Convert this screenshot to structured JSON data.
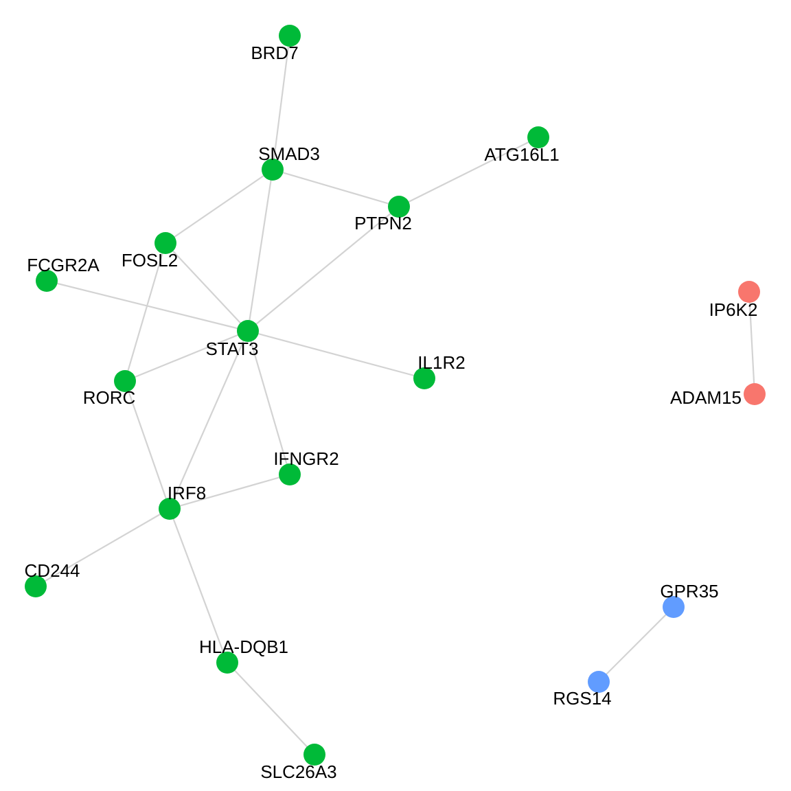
{
  "graph": {
    "colors": {
      "edge": "#d3d3d3",
      "group_green": "#00ba38",
      "group_red": "#f8766d",
      "group_blue": "#619cff"
    },
    "nodes": [
      {
        "id": "BRD7",
        "label": "BRD7",
        "group": "green"
      },
      {
        "id": "SMAD3",
        "label": "SMAD3",
        "group": "green"
      },
      {
        "id": "ATG16L1",
        "label": "ATG16L1",
        "group": "green"
      },
      {
        "id": "PTPN2",
        "label": "PTPN2",
        "group": "green"
      },
      {
        "id": "FOSL2",
        "label": "FOSL2",
        "group": "green"
      },
      {
        "id": "FCGR2A",
        "label": "FCGR2A",
        "group": "green"
      },
      {
        "id": "STAT3",
        "label": "STAT3",
        "group": "green"
      },
      {
        "id": "IL1R2",
        "label": "IL1R2",
        "group": "green"
      },
      {
        "id": "RORC",
        "label": "RORC",
        "group": "green"
      },
      {
        "id": "IFNGR2",
        "label": "IFNGR2",
        "group": "green"
      },
      {
        "id": "IRF8",
        "label": "IRF8",
        "group": "green"
      },
      {
        "id": "CD244",
        "label": "CD244",
        "group": "green"
      },
      {
        "id": "HLA-DQB1",
        "label": "HLA-DQB1",
        "group": "green"
      },
      {
        "id": "SLC26A3",
        "label": "SLC26A3",
        "group": "green"
      },
      {
        "id": "IP6K2",
        "label": "IP6K2",
        "group": "red"
      },
      {
        "id": "ADAM15",
        "label": "ADAM15",
        "group": "red"
      },
      {
        "id": "GPR35",
        "label": "GPR35",
        "group": "blue"
      },
      {
        "id": "RGS14",
        "label": "RGS14",
        "group": "blue"
      }
    ],
    "edges": [
      [
        "BRD7",
        "SMAD3"
      ],
      [
        "SMAD3",
        "PTPN2"
      ],
      [
        "SMAD3",
        "FOSL2"
      ],
      [
        "SMAD3",
        "STAT3"
      ],
      [
        "PTPN2",
        "ATG16L1"
      ],
      [
        "PTPN2",
        "STAT3"
      ],
      [
        "FOSL2",
        "STAT3"
      ],
      [
        "FOSL2",
        "RORC"
      ],
      [
        "FCGR2A",
        "STAT3"
      ],
      [
        "STAT3",
        "IL1R2"
      ],
      [
        "STAT3",
        "RORC"
      ],
      [
        "STAT3",
        "IFNGR2"
      ],
      [
        "STAT3",
        "IRF8"
      ],
      [
        "RORC",
        "IRF8"
      ],
      [
        "IRF8",
        "IFNGR2"
      ],
      [
        "IRF8",
        "CD244"
      ],
      [
        "IRF8",
        "HLA-DQB1"
      ],
      [
        "HLA-DQB1",
        "SLC26A3"
      ],
      [
        "IP6K2",
        "ADAM15"
      ],
      [
        "GPR35",
        "RGS14"
      ]
    ]
  }
}
